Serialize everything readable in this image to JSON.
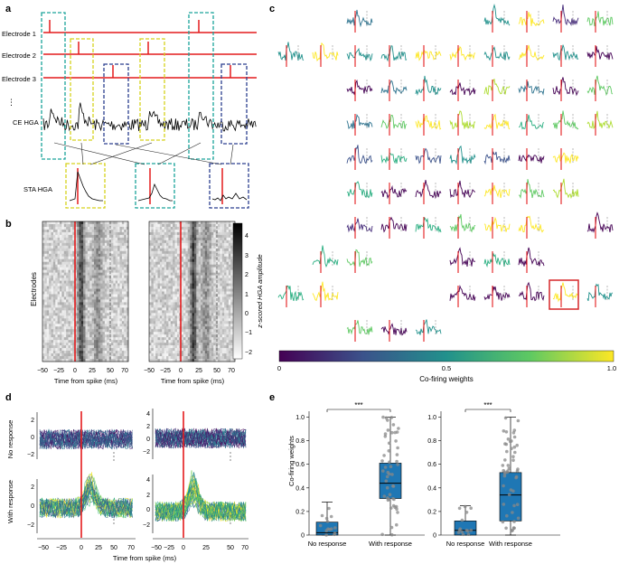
{
  "panel_labels": {
    "a": "a",
    "b": "b",
    "c": "c",
    "d": "d",
    "e": "e"
  },
  "panel_a": {
    "electrodes": [
      "Electrode 1",
      "Electrode 2",
      "Electrode 3"
    ],
    "ellipsis": "⋮",
    "ce_label": "CE HGA",
    "sta_label": "STA HGA"
  },
  "panel_b": {
    "ylabel": "Electrodes",
    "xlabel": "Time from spike (ms)",
    "xticks": [
      "−50",
      "−25",
      "0",
      "25",
      "50",
      "70"
    ],
    "cbar_label": "z-scored HGA amplitude",
    "cbar_ticks": [
      "4",
      "3",
      "2",
      "1",
      "0",
      "−1",
      "−2"
    ]
  },
  "panel_c": {
    "cbar_label": "Co-firing weights",
    "cbar_ticks": [
      "0",
      "0.5",
      "1.0"
    ],
    "colors": {
      "low": "#440154",
      "mid": "#21918c",
      "high": "#fde725",
      "highlight": "#d62728"
    }
  },
  "panel_d": {
    "row_labels": [
      "No response",
      "With response"
    ],
    "xlabel": "Time from spike (ms)",
    "xticks": [
      "−50",
      "−25",
      "0",
      "25",
      "50",
      "70"
    ],
    "left_yticks": [
      "2",
      "0",
      "−2"
    ],
    "right_yticks": [
      "4",
      "2",
      "0",
      "−2"
    ]
  },
  "chart_data": [
    {
      "type": "box",
      "title": "",
      "ylabel": "Co-firing weights",
      "categories": [
        "No response",
        "With response"
      ],
      "yticks": [
        "0",
        "0.2",
        "0.4",
        "0.6",
        "0.8",
        "1.0"
      ],
      "ylim": [
        0,
        1.05
      ],
      "significance": "***",
      "series": [
        {
          "name": "No response",
          "q1": 0.0,
          "median": 0.02,
          "q3": 0.11,
          "whisker_low": 0.0,
          "whisker_high": 0.28
        },
        {
          "name": "With response",
          "q1": 0.31,
          "median": 0.44,
          "q3": 0.61,
          "whisker_low": 0.0,
          "whisker_high": 1.0
        }
      ]
    },
    {
      "type": "box",
      "title": "",
      "ylabel": "",
      "categories": [
        "No response",
        "With response"
      ],
      "yticks": [
        "0",
        "0.2",
        "0.4",
        "0.6",
        "0.8",
        "1.0"
      ],
      "ylim": [
        0,
        1.05
      ],
      "significance": "***",
      "series": [
        {
          "name": "No response",
          "q1": 0.0,
          "median": 0.04,
          "q3": 0.12,
          "whisker_low": 0.0,
          "whisker_high": 0.25
        },
        {
          "name": "With response",
          "q1": 0.12,
          "median": 0.34,
          "q3": 0.53,
          "whisker_low": 0.0,
          "whisker_high": 1.0
        }
      ]
    }
  ]
}
